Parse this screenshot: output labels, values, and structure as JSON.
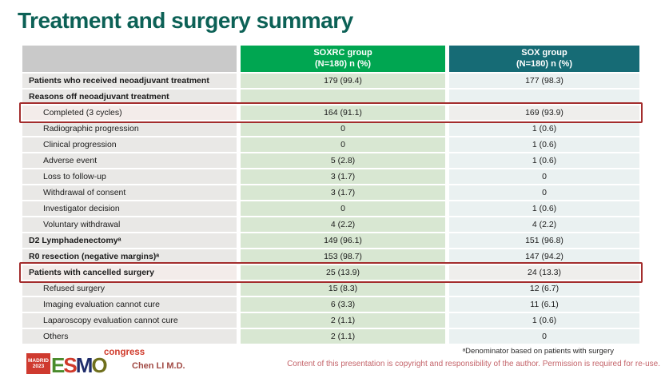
{
  "slide": {
    "title": "Treatment and surgery summary",
    "presenter": "Chen LI M.D.",
    "footnote": "ᵃDenominator based on patients with surgery",
    "copyright": "Content of this presentation is copyright and responsibility of the author. Permission is required for re-use."
  },
  "logo": {
    "badge_line1": "MADRID",
    "badge_line2": "2023",
    "letters": [
      "E",
      "S",
      "M",
      "O"
    ],
    "congress": "congress"
  },
  "colors": {
    "title_teal": "#0c6156",
    "soxrc_header_green": "#00a651",
    "sox_header_teal": "#166b75",
    "label_header_gray": "#c9c9c9",
    "label_cell_gray": "#e9e8e6",
    "soxrc_cell_green": "#d8e7d2",
    "sox_cell_blue": "#eaf1f1",
    "highlight_red": "#a32d2d"
  },
  "table": {
    "columns": [
      {
        "label_line1": "SOXRC group",
        "label_line2": "(N=180)  n (%)",
        "header_color": "#00a651"
      },
      {
        "label_line1": "SOX group",
        "label_line2": "(N=180)  n (%)",
        "header_color": "#166b75"
      }
    ],
    "rows": [
      {
        "label": "Patients who received neoadjuvant treatment",
        "bold": true,
        "indent": false,
        "soxrc": "179 (99.4)",
        "sox": "177 (98.3)",
        "highlight": false
      },
      {
        "label": "Reasons off neoadjuvant treatment",
        "bold": true,
        "indent": false,
        "soxrc": "",
        "sox": "",
        "highlight": false
      },
      {
        "label": "Completed (3 cycles)",
        "bold": false,
        "indent": true,
        "soxrc": "164 (91.1)",
        "sox": "169 (93.9)",
        "highlight": true
      },
      {
        "label": "Radiographic progression",
        "bold": false,
        "indent": true,
        "soxrc": "0",
        "sox": "1 (0.6)",
        "highlight": false
      },
      {
        "label": "Clinical progression",
        "bold": false,
        "indent": true,
        "soxrc": "0",
        "sox": "1 (0.6)",
        "highlight": false
      },
      {
        "label": "Adverse event",
        "bold": false,
        "indent": true,
        "soxrc": "5 (2.8)",
        "sox": "1 (0.6)",
        "highlight": false
      },
      {
        "label": "Loss to follow-up",
        "bold": false,
        "indent": true,
        "soxrc": "3 (1.7)",
        "sox": "0",
        "highlight": false
      },
      {
        "label": "Withdrawal of consent",
        "bold": false,
        "indent": true,
        "soxrc": "3 (1.7)",
        "sox": "0",
        "highlight": false
      },
      {
        "label": "Investigator decision",
        "bold": false,
        "indent": true,
        "soxrc": "0",
        "sox": "1 (0.6)",
        "highlight": false
      },
      {
        "label": "Voluntary withdrawal",
        "bold": false,
        "indent": true,
        "soxrc": "4 (2.2)",
        "sox": "4 (2.2)",
        "highlight": false
      },
      {
        "label": "D2 Lymphadenectomyᵃ",
        "bold": true,
        "indent": false,
        "soxrc": "149 (96.1)",
        "sox": "151 (96.8)",
        "highlight": false
      },
      {
        "label": "R0 resection (negative margins)ᵃ",
        "bold": true,
        "indent": false,
        "soxrc": "153 (98.7)",
        "sox": "147 (94.2)",
        "highlight": false
      },
      {
        "label": "Patients with cancelled surgery",
        "bold": true,
        "indent": false,
        "soxrc": "25 (13.9)",
        "sox": "24 (13.3)",
        "highlight": true
      },
      {
        "label": "Refused surgery",
        "bold": false,
        "indent": true,
        "soxrc": "15 (8.3)",
        "sox": "12 (6.7)",
        "highlight": false
      },
      {
        "label": "Imaging evaluation cannot cure",
        "bold": false,
        "indent": true,
        "soxrc": "6 (3.3)",
        "sox": "11 (6.1)",
        "highlight": false
      },
      {
        "label": "Laparoscopy evaluation cannot cure",
        "bold": false,
        "indent": true,
        "soxrc": "2 (1.1)",
        "sox": "1 (0.6)",
        "highlight": false
      },
      {
        "label": "Others",
        "bold": false,
        "indent": true,
        "soxrc": "2 (1.1)",
        "sox": "0",
        "highlight": false
      }
    ]
  }
}
